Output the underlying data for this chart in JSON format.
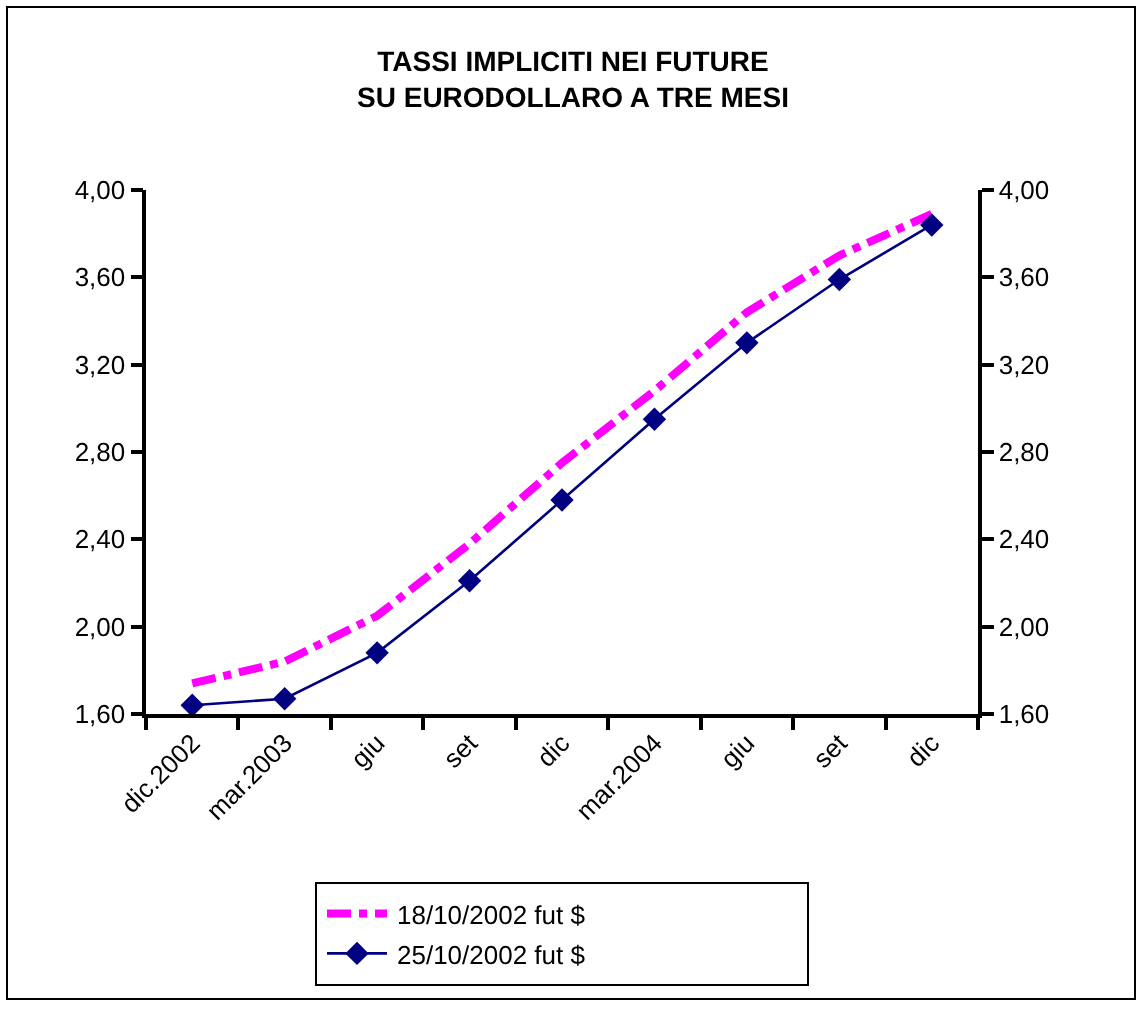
{
  "chart_data": {
    "type": "line",
    "title": "TASSI IMPLICITI NEI FUTURE SU EURODOLLARO A TRE MESI",
    "categories": [
      "dic.2002",
      "mar.2003",
      "giu",
      "set",
      "dic",
      "mar.2004",
      "giu",
      "set",
      "dic"
    ],
    "series": [
      {
        "name": "18/10/2002 fut $",
        "color": "#ff00ff",
        "line_style": "dashed",
        "marker": "none",
        "values": [
          1.74,
          1.84,
          2.05,
          2.38,
          2.75,
          3.08,
          3.44,
          3.7,
          3.89
        ]
      },
      {
        "name": "25/10/2002 fut $",
        "color": "#000080",
        "line_style": "solid",
        "marker": "diamond",
        "values": [
          1.64,
          1.67,
          1.88,
          2.21,
          2.58,
          2.95,
          3.3,
          3.59,
          3.84
        ]
      }
    ],
    "ylim": [
      1.6,
      4.0
    ],
    "yticks": [
      {
        "value": 1.6,
        "label": "1,60"
      },
      {
        "value": 2.0,
        "label": "2,00"
      },
      {
        "value": 2.4,
        "label": "2,40"
      },
      {
        "value": 2.8,
        "label": "2,80"
      },
      {
        "value": 3.2,
        "label": "3,20"
      },
      {
        "value": 3.6,
        "label": "3,60"
      },
      {
        "value": 4.0,
        "label": "4,00"
      }
    ],
    "y2lim": [
      1.6,
      4.0
    ],
    "y2ticks": [
      {
        "value": 1.6,
        "label": "1,60"
      },
      {
        "value": 2.0,
        "label": "2,00"
      },
      {
        "value": 2.4,
        "label": "2,40"
      },
      {
        "value": 2.8,
        "label": "2,80"
      },
      {
        "value": 3.2,
        "label": "3,20"
      },
      {
        "value": 3.6,
        "label": "3,60"
      },
      {
        "value": 4.0,
        "label": "4,00"
      }
    ],
    "grid": false,
    "legend": "bottom"
  }
}
